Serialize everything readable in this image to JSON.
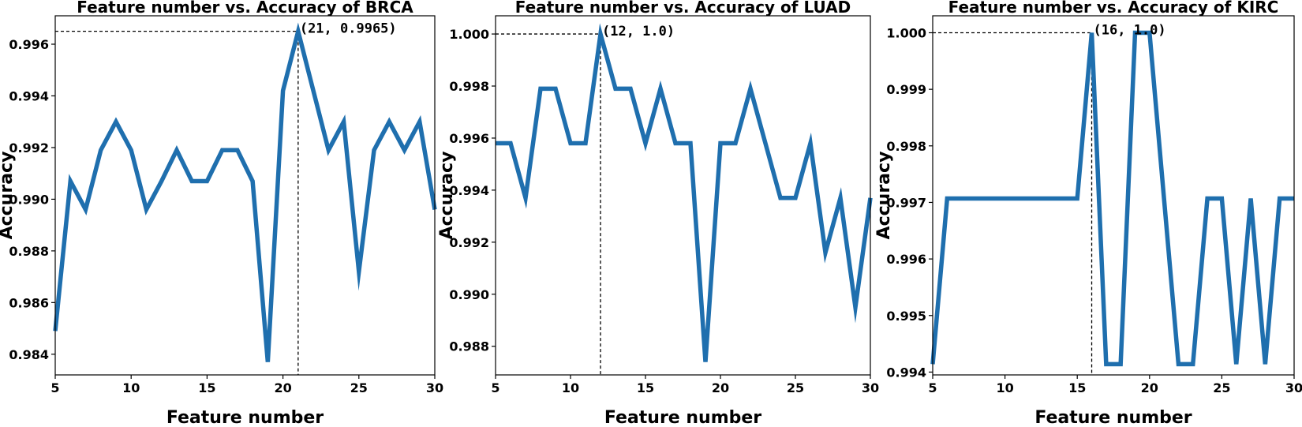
{
  "chart_data": [
    {
      "type": "line",
      "title": "Feature number vs. Accuracy of BRCA",
      "xlabel": "Feature number",
      "ylabel": "Accuracy",
      "xlim": [
        5,
        30
      ],
      "ylim": [
        0.9832,
        0.9971
      ],
      "xticks": [
        5,
        10,
        15,
        20,
        25,
        30
      ],
      "xtick_labels": [
        "5",
        "10",
        "15",
        "20",
        "25",
        "30"
      ],
      "yticks": [
        0.984,
        0.986,
        0.988,
        0.99,
        0.992,
        0.994,
        0.996
      ],
      "ytick_labels": [
        "0.984",
        "0.986",
        "0.988",
        "0.990",
        "0.992",
        "0.994",
        "0.996"
      ],
      "color": "#1f6fae",
      "x": [
        5,
        6,
        7,
        8,
        9,
        10,
        11,
        12,
        13,
        14,
        15,
        16,
        17,
        18,
        19,
        20,
        21,
        22,
        23,
        24,
        25,
        26,
        27,
        28,
        29,
        30
      ],
      "y": [
        0.9849,
        0.9907,
        0.9896,
        0.9919,
        0.993,
        0.9919,
        0.9896,
        0.9907,
        0.9919,
        0.9907,
        0.9907,
        0.9919,
        0.9919,
        0.9907,
        0.9837,
        0.9942,
        0.9965,
        0.9942,
        0.9919,
        0.993,
        0.9872,
        0.9919,
        0.993,
        0.9919,
        0.993,
        0.9896
      ],
      "best_x": 21,
      "best_y": 0.9965,
      "annotation": "(21, 0.9965)"
    },
    {
      "type": "line",
      "title": "Feature number vs. Accuracy of LUAD",
      "xlabel": "Feature number",
      "ylabel": "Accuracy",
      "xlim": [
        5,
        30
      ],
      "ylim": [
        0.9869,
        1.0007
      ],
      "xticks": [
        5,
        10,
        15,
        20,
        25,
        30
      ],
      "xtick_labels": [
        "5",
        "10",
        "15",
        "20",
        "25",
        "30"
      ],
      "yticks": [
        0.988,
        0.99,
        0.992,
        0.994,
        0.996,
        0.998,
        1.0
      ],
      "ytick_labels": [
        "0.988",
        "0.990",
        "0.992",
        "0.994",
        "0.996",
        "0.998",
        "1.000"
      ],
      "color": "#1f6fae",
      "x": [
        5,
        6,
        7,
        8,
        9,
        10,
        11,
        12,
        13,
        14,
        15,
        16,
        17,
        18,
        19,
        20,
        21,
        22,
        23,
        24,
        25,
        26,
        27,
        28,
        29,
        30
      ],
      "y": [
        0.9958,
        0.9958,
        0.9937,
        0.9979,
        0.9979,
        0.9958,
        0.9958,
        1.0,
        0.9979,
        0.9979,
        0.9958,
        0.9979,
        0.9958,
        0.9958,
        0.9874,
        0.9958,
        0.9958,
        0.9979,
        0.9958,
        0.9937,
        0.9937,
        0.9958,
        0.9916,
        0.9937,
        0.9895,
        0.9937
      ],
      "best_x": 12,
      "best_y": 1.0,
      "annotation": "(12, 1.0)"
    },
    {
      "type": "line",
      "title": "Feature number vs. Accuracy of KIRC",
      "xlabel": "Feature number",
      "ylabel": "Accuracy",
      "xlim": [
        5,
        30
      ],
      "ylim": [
        0.99395,
        1.0003
      ],
      "xticks": [
        5,
        10,
        15,
        20,
        25,
        30
      ],
      "xtick_labels": [
        "5",
        "10",
        "15",
        "20",
        "25",
        "30"
      ],
      "yticks": [
        0.994,
        0.995,
        0.996,
        0.997,
        0.998,
        0.999,
        1.0
      ],
      "ytick_labels": [
        "0.994",
        "0.995",
        "0.996",
        "0.997",
        "0.998",
        "0.999",
        "1.000"
      ],
      "color": "#1f6fae",
      "x": [
        5,
        6,
        7,
        8,
        9,
        10,
        11,
        12,
        13,
        14,
        15,
        16,
        17,
        18,
        19,
        20,
        21,
        22,
        23,
        24,
        25,
        26,
        27,
        28,
        29,
        30
      ],
      "y": [
        0.99414,
        0.99707,
        0.99707,
        0.99707,
        0.99707,
        0.99707,
        0.99707,
        0.99707,
        0.99707,
        0.99707,
        0.99707,
        1.0,
        0.99414,
        0.99414,
        1.0,
        1.0,
        0.99707,
        0.99414,
        0.99414,
        0.99707,
        0.99707,
        0.99414,
        0.99707,
        0.99414,
        0.99707,
        0.99707
      ],
      "best_x": 16,
      "best_y": 1.0,
      "annotation": "(16, 1.0)"
    }
  ]
}
